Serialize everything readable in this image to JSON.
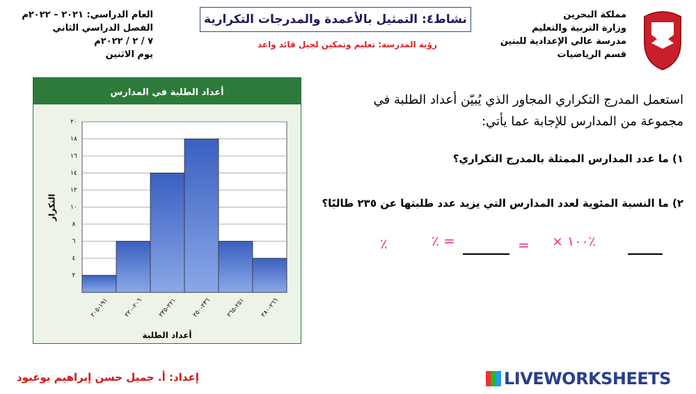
{
  "header": {
    "left": [
      "العام الدراسي: ٢٠٢١ – ٢٠٢٢م",
      "الفصل الدراسي الثاني",
      "٧ / ٢ / ٢٠٢٢م",
      "يوم الاثنين"
    ],
    "title": "نشاط٤: التمثيل بالأعمدة والمدرجات التكرارية",
    "vision": "رؤية المدرسة: تعليم وتمكين لجيل قائد واعد",
    "right": [
      "مملكة البحرين",
      "وزارة التربية والتعليم",
      "مدرسة عالي الإعدادية للبنين",
      "قسم الرياضيات"
    ]
  },
  "instructions": [
    "استعمل المدرج التكراري المجاور الذي يُبيّن أعداد الطلبة في",
    "مجموعة من المدارس  للإجابة عما يأتي:"
  ],
  "questions": [
    "١) ما عدد المدارس الممثلة بالمدرج التكراري؟",
    "٢) ما النسبة المئوية لعدد المدارس التي يزيد عدد طلبتها عن ٢٣٥ طالبًا؟"
  ],
  "answer_row": [
    "٪",
    "= ٪",
    "=",
    "٪١٠٠ ×"
  ],
  "footer": {
    "author": "إعداد: أ. جميل حسن إبراهيم بوعبود",
    "brand": "LIVEWORKSHEETS"
  },
  "chart_data": {
    "type": "histogram",
    "title": "أعداد الطلبة في المدارس",
    "x_label": "أعداد الطلبة",
    "y_label": "التكرار",
    "categories": [
      "١٩١-٢٠٥",
      "٢٠٦-٢٢٠",
      "٢٢١-٢٣٥",
      "٢٣٦-٢٥٠",
      "٢٥١-٢٦٥",
      "٢٦٦-٢٨٠"
    ],
    "values": [
      2,
      6,
      14,
      18,
      6,
      4
    ],
    "color": "#3a5fc0",
    "ylim": [
      0,
      20
    ],
    "yticks": [
      {
        "value": 2,
        "label": "٢"
      },
      {
        "value": 4,
        "label": "٤"
      },
      {
        "value": 6,
        "label": "٦"
      },
      {
        "value": 8,
        "label": "٨"
      },
      {
        "value": 10,
        "label": "١٠"
      },
      {
        "value": 12,
        "label": "١٢"
      },
      {
        "value": 14,
        "label": "١٤"
      },
      {
        "value": 16,
        "label": "١٦"
      },
      {
        "value": 18,
        "label": "١٨"
      },
      {
        "value": 20,
        "label": "٢٠"
      }
    ],
    "grid": true
  }
}
